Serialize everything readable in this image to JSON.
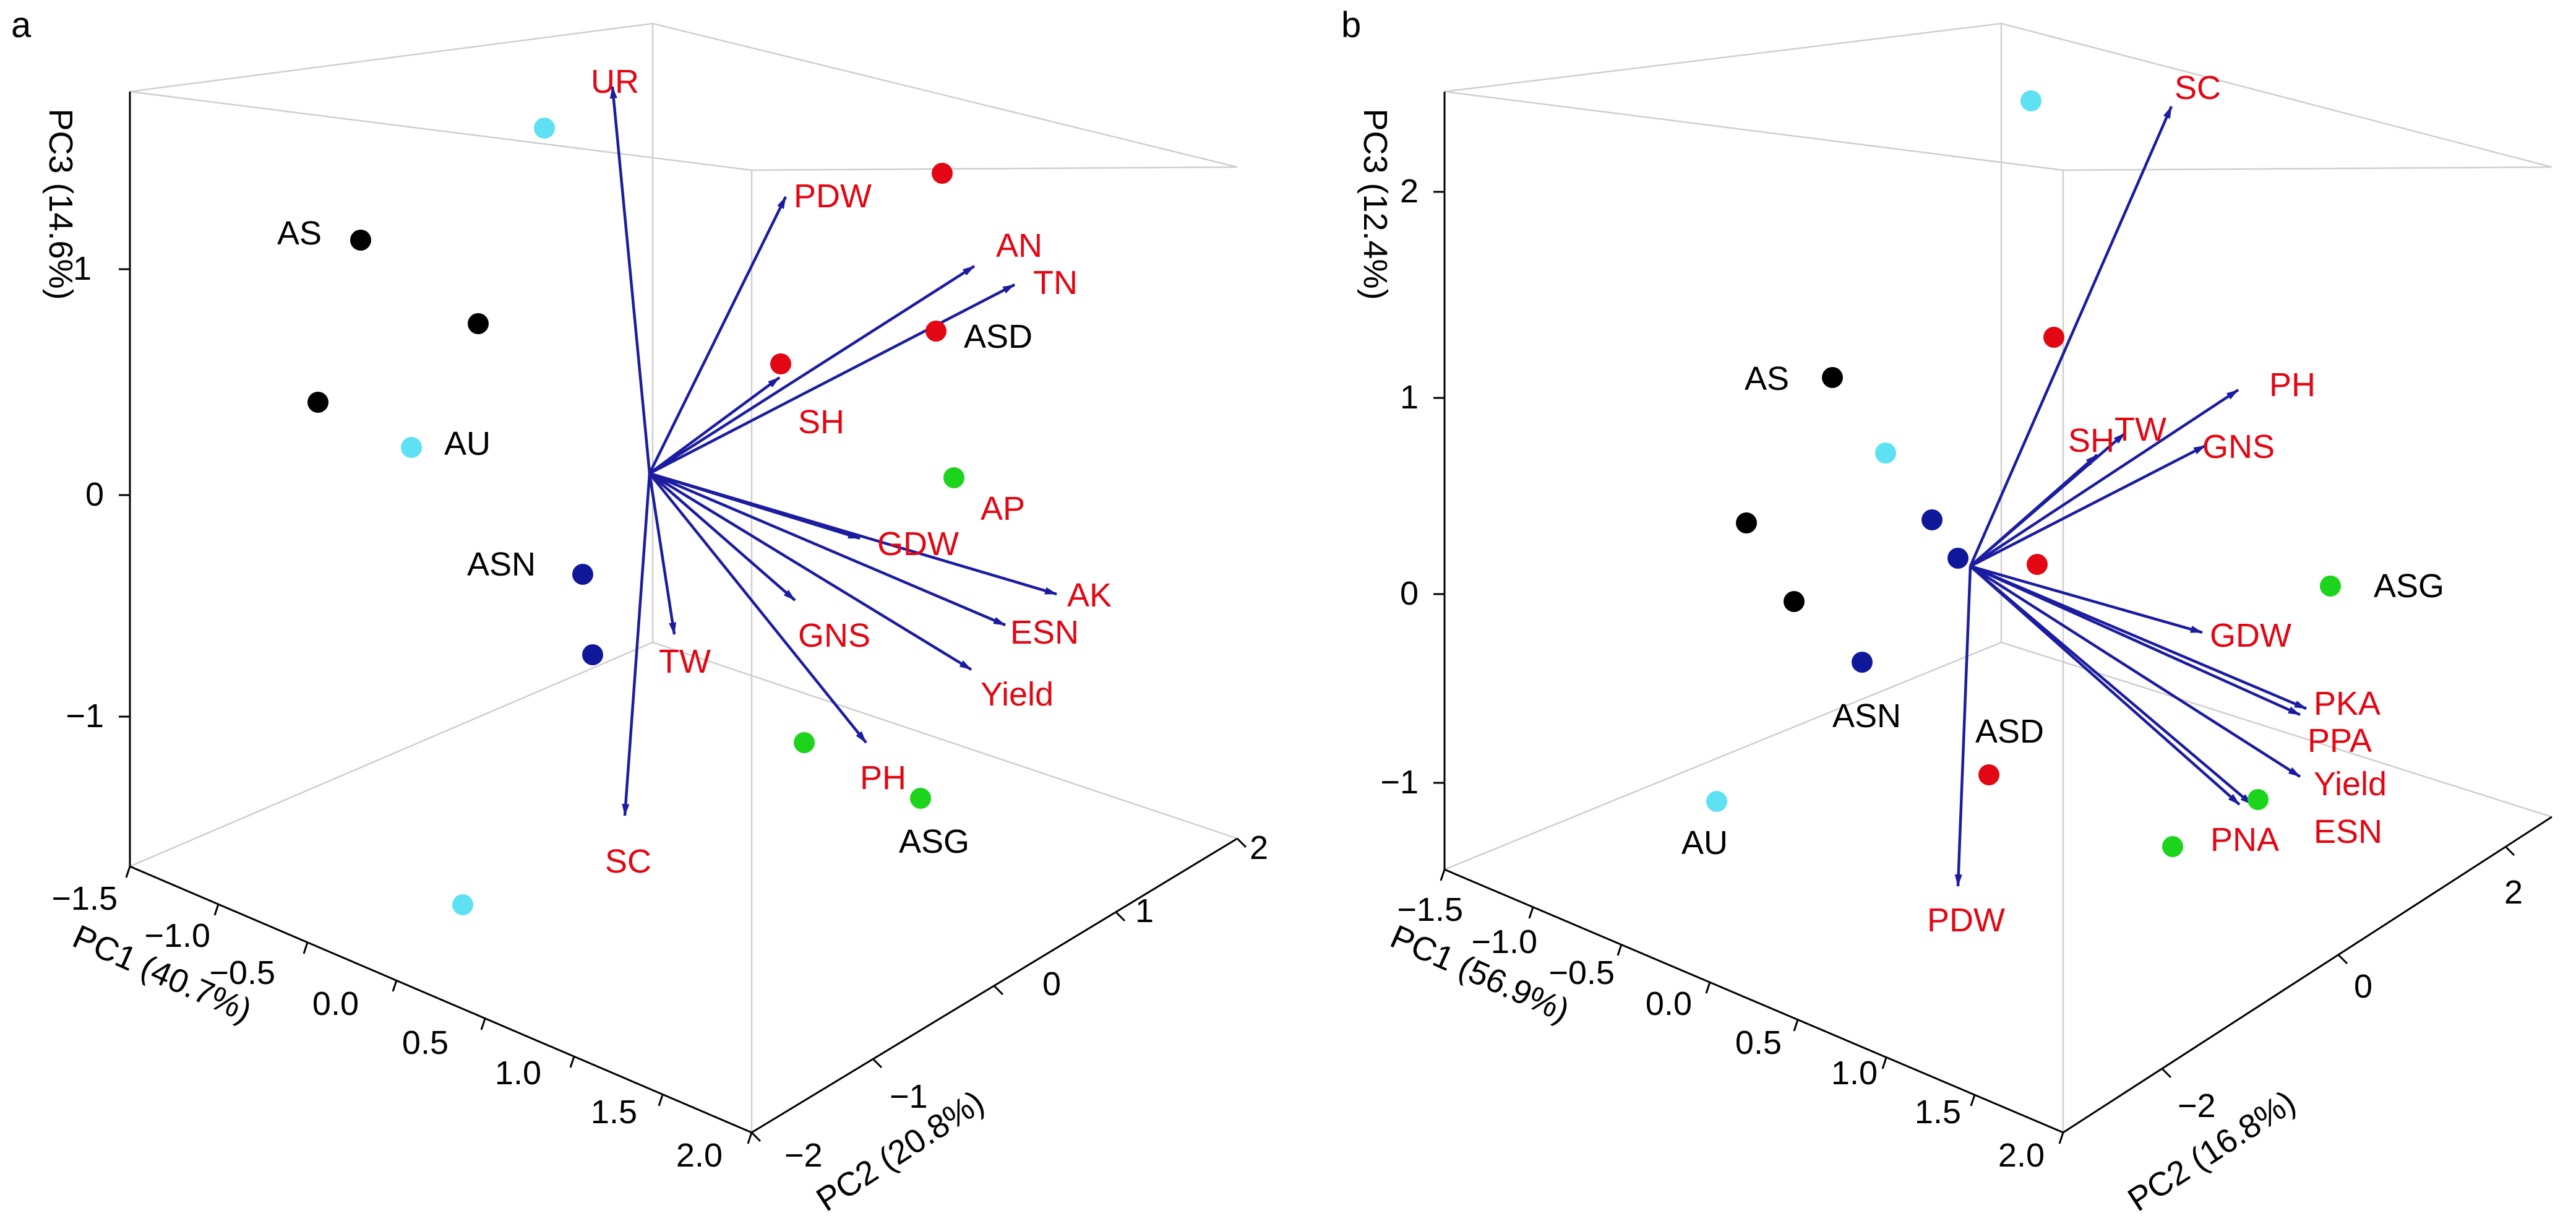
{
  "chart_data": [
    {
      "type": "scatter",
      "subtype": "3d-biplot",
      "panel_label": "a",
      "axes": {
        "pc1": {
          "label": "PC1 (40.7%)",
          "ticks": [
            "−1.5",
            "−1.0",
            "−0.5",
            "0.0",
            "0.5",
            "1.0",
            "1.5",
            "2.0"
          ]
        },
        "pc2": {
          "label": "PC2 (20.8%)",
          "ticks": [
            "−2",
            "−1",
            "0",
            "1",
            "2"
          ]
        },
        "pc3": {
          "label": "PC3 (14.6%)",
          "ticks": [
            "1",
            "0",
            "−1"
          ]
        }
      },
      "groups": [
        {
          "name": "AU",
          "color": "#5ee1f2",
          "points": 3
        },
        {
          "name": "AS",
          "color": "#000000",
          "points": 3
        },
        {
          "name": "ASN",
          "color": "#10189a",
          "points": 2
        },
        {
          "name": "ASD",
          "color": "#e30613",
          "points": 3
        },
        {
          "name": "ASG",
          "color": "#1cd41c",
          "points": 3
        }
      ],
      "loadings": [
        "UR",
        "PDW",
        "AN",
        "TN",
        "SH",
        "AP",
        "GDW",
        "AK",
        "ESN",
        "GNS",
        "Yield",
        "TW",
        "PH",
        "SC"
      ]
    },
    {
      "type": "scatter",
      "subtype": "3d-biplot",
      "panel_label": "b",
      "axes": {
        "pc1": {
          "label": "PC1 (56.9%)",
          "ticks": [
            "−1.5",
            "−1.0",
            "−0.5",
            "0.0",
            "0.5",
            "1.0",
            "1.5",
            "2.0"
          ]
        },
        "pc2": {
          "label": "PC2 (16.8%)",
          "ticks": [
            "−2",
            "0",
            "2"
          ]
        },
        "pc3": {
          "label": "PC3 (12.4%)",
          "ticks": [
            "2",
            "1",
            "0",
            "−1"
          ]
        }
      },
      "groups": [
        {
          "name": "AU",
          "color": "#5ee1f2",
          "points": 3
        },
        {
          "name": "AS",
          "color": "#000000",
          "points": 3
        },
        {
          "name": "ASN",
          "color": "#10189a",
          "points": 3
        },
        {
          "name": "ASD",
          "color": "#e30613",
          "points": 3
        },
        {
          "name": "ASG",
          "color": "#1cd41c",
          "points": 3
        }
      ],
      "loadings": [
        "SC",
        "PH",
        "SH",
        "TW",
        "GNS",
        "GDW",
        "PKA",
        "PPA",
        "Yield",
        "ESN",
        "PNA",
        "PDW"
      ]
    }
  ]
}
